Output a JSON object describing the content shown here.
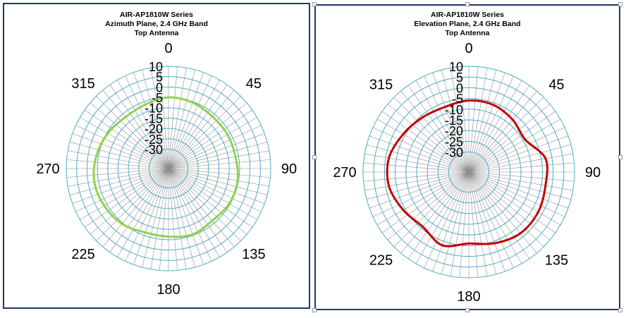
{
  "chart_data": [
    {
      "type": "polar-line",
      "title": "AIR-AP1810W Series",
      "subtitle_1": "Azimuth Plane, 2.4 GHz Band",
      "subtitle_2": "Top Antenna",
      "angle_labels": [
        "0",
        "45",
        "90",
        "135",
        "180",
        "225",
        "270",
        "315"
      ],
      "radial_ticks": [
        "10",
        "5",
        "0",
        "-5",
        "-10",
        "-15",
        "-20",
        "-25",
        "-30"
      ],
      "rlim": [
        -30,
        10
      ],
      "series": [
        {
          "color": "#92d050",
          "theta": [
            0,
            20,
            40,
            60,
            80,
            100,
            120,
            140,
            160,
            180,
            200,
            220,
            240,
            260,
            280,
            300,
            320,
            340
          ],
          "values": [
            -5,
            -5.5,
            -6.5,
            -6.5,
            -6.5,
            -5.5,
            -5.5,
            -6.5,
            -5.5,
            -6.5,
            -6.5,
            -4.5,
            -3.5,
            -3,
            -4,
            -5.5,
            -7,
            -6.5
          ]
        }
      ]
    },
    {
      "type": "polar-line",
      "title": "AIR-AP1810W Series",
      "subtitle_1": "Elevation Plane, 2.4 GHz Band",
      "subtitle_2": "Top Antenna",
      "angle_labels": [
        "0",
        "45",
        "90",
        "135",
        "180",
        "225",
        "270",
        "315"
      ],
      "radial_ticks": [
        "10",
        "5",
        "0",
        "-5",
        "-10",
        "-15",
        "-20",
        "-25",
        "-30"
      ],
      "rlim": [
        -30,
        10
      ],
      "series": [
        {
          "color": "#c00000",
          "theta": [
            0,
            20,
            40,
            60,
            80,
            100,
            120,
            140,
            160,
            180,
            200,
            220,
            240,
            260,
            280,
            300,
            320,
            340
          ],
          "values": [
            -6,
            -6,
            -7.5,
            -9,
            -3,
            -3,
            -2,
            -2,
            -4,
            -6,
            -3,
            -6,
            -4,
            -1.5,
            -1.5,
            -4,
            -6,
            -7
          ]
        }
      ]
    }
  ]
}
